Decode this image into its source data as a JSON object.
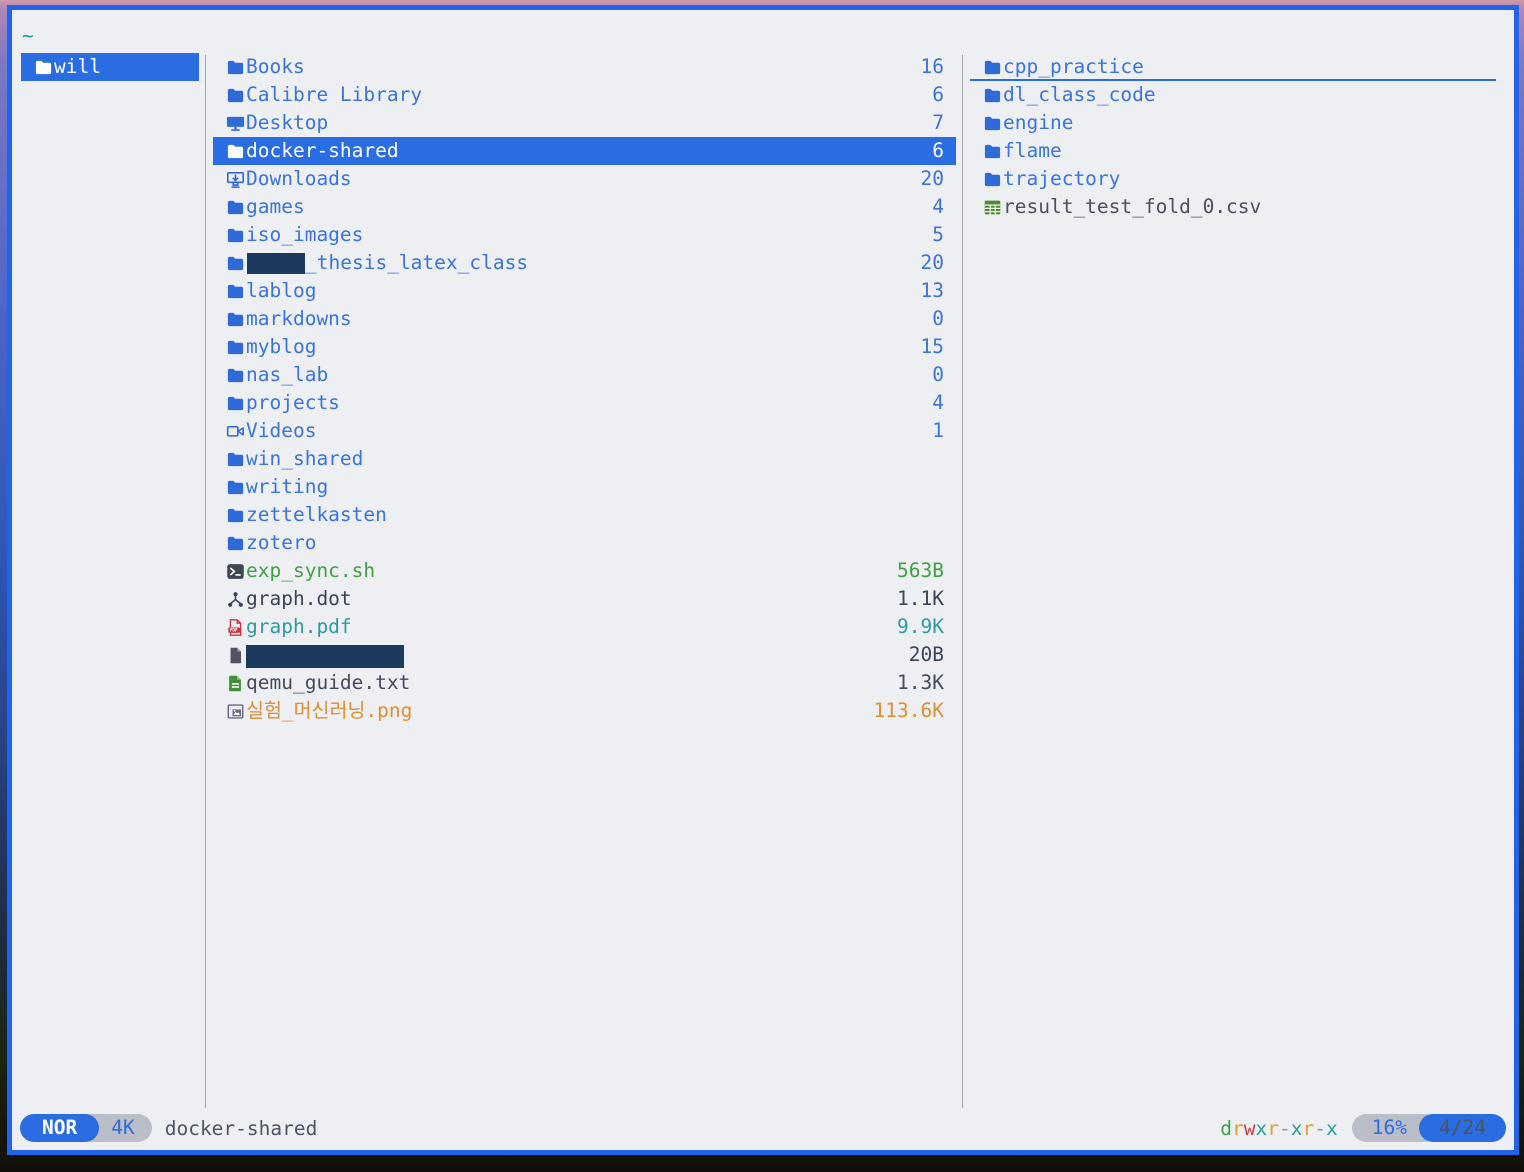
{
  "colors": {
    "window_border": "#2264e8",
    "app_background": "#edeff3",
    "selection_blue": "#2a6ce2",
    "item_blue": "#3a74dc",
    "breadcrumb_teal": "#1a9c8f",
    "redaction_navy": "#1c3a5e",
    "pill_gray": "#b9bec8",
    "perm_d": "#3da24b",
    "perm_r": "#e39c36",
    "perm_w": "#d33a4a",
    "perm_x": "#2ba095",
    "perm_dash": "#8b93a1"
  },
  "header": {
    "path": "~"
  },
  "parent_pane": {
    "items": [
      {
        "label": "will",
        "icon": "folder-icon",
        "selected": true
      }
    ]
  },
  "current_pane": {
    "items": [
      {
        "label": "Books",
        "icon": "folder-icon",
        "count": "16"
      },
      {
        "label": "Calibre Library",
        "icon": "folder-icon",
        "count": "6"
      },
      {
        "label": "Desktop",
        "icon": "desktop-icon",
        "count": "7"
      },
      {
        "label": "docker-shared",
        "icon": "folder-icon",
        "count": "6",
        "selected": true
      },
      {
        "label": "Downloads",
        "icon": "download-icon",
        "count": "20"
      },
      {
        "label": "games",
        "icon": "folder-icon",
        "count": "4"
      },
      {
        "label": "iso_images",
        "icon": "folder-icon",
        "count": "5"
      },
      {
        "label": "_thesis_latex_class",
        "icon": "folder-icon",
        "count": "20",
        "redacted_prefix": true
      },
      {
        "label": "lablog",
        "icon": "folder-icon",
        "count": "13"
      },
      {
        "label": "markdowns",
        "icon": "folder-icon",
        "count": "0"
      },
      {
        "label": "myblog",
        "icon": "folder-icon",
        "count": "15"
      },
      {
        "label": "nas_lab",
        "icon": "folder-icon",
        "count": "0"
      },
      {
        "label": "projects",
        "icon": "folder-icon",
        "count": "4"
      },
      {
        "label": "Videos",
        "icon": "video-icon",
        "count": "1"
      },
      {
        "label": "win_shared",
        "icon": "folder-icon"
      },
      {
        "label": "writing",
        "icon": "folder-icon"
      },
      {
        "label": "zettelkasten",
        "icon": "folder-icon"
      },
      {
        "label": "zotero",
        "icon": "folder-icon"
      },
      {
        "label": "exp_sync.sh",
        "icon": "terminal-icon",
        "count": "563B",
        "color": "#41a044",
        "count_color": "#41a044"
      },
      {
        "label": "graph.dot",
        "icon": "graph-icon",
        "count": "1.1K",
        "color": "#3d4358",
        "count_color": "#3d4358"
      },
      {
        "label": "graph.pdf",
        "icon": "pdf-icon",
        "count": "9.9K",
        "color": "#2d9b9b",
        "count_color": "#2d9b9b"
      },
      {
        "label": "",
        "icon": "file-icon",
        "count": "20B",
        "count_color": "#3d4358",
        "redacted": true
      },
      {
        "label": "qemu_guide.txt",
        "icon": "file-text-icon",
        "count": "1.3K",
        "color": "#454b5c",
        "count_color": "#454b5c"
      },
      {
        "label": "실험_머신러닝.png",
        "icon": "image-icon",
        "count": "113.6K",
        "color": "#dd8f33",
        "count_color": "#dd8f33"
      }
    ]
  },
  "preview_pane": {
    "items": [
      {
        "label": "cpp_practice",
        "icon": "folder-icon",
        "hovered": true
      },
      {
        "label": "dl_class_code",
        "icon": "folder-icon"
      },
      {
        "label": "engine",
        "icon": "folder-icon"
      },
      {
        "label": "flame",
        "icon": "folder-icon"
      },
      {
        "label": "trajectory",
        "icon": "folder-icon"
      },
      {
        "label": "result_test_fold_0.csv",
        "icon": "csv-icon",
        "color": "#4a5060"
      }
    ]
  },
  "status_bar": {
    "mode": "NOR",
    "resolution": "4K",
    "current_item": "docker-shared",
    "permissions": "drwxr-xr-x",
    "percent": "16%",
    "position": "4/24"
  }
}
